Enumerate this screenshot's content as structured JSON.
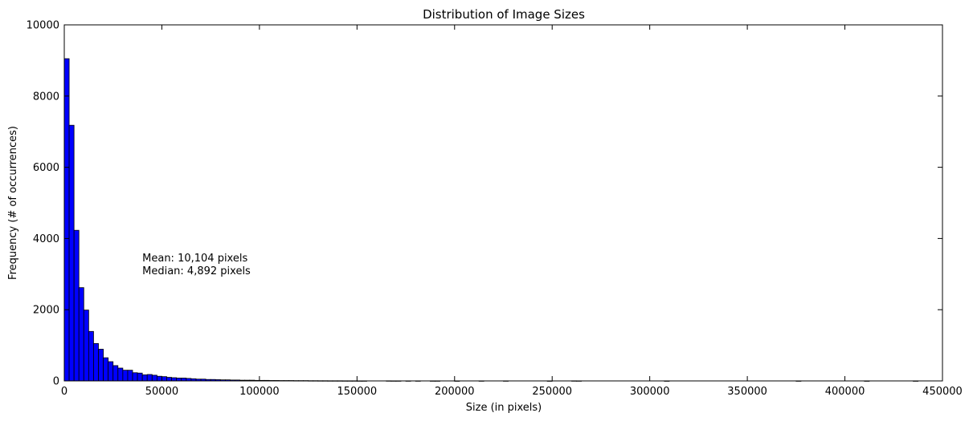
{
  "chart_data": {
    "type": "bar",
    "title": "Distribution of Image Sizes",
    "xlabel": "Size (in pixels)",
    "ylabel": "Frequency (# of occurrences)",
    "xlim": [
      0,
      450000
    ],
    "ylim": [
      0,
      10000
    ],
    "xticks": [
      "0",
      "50000",
      "100000",
      "150000",
      "200000",
      "250000",
      "300000",
      "350000",
      "400000",
      "450000"
    ],
    "yticks": [
      "0",
      "2000",
      "4000",
      "6000",
      "8000",
      "10000"
    ],
    "grid": false,
    "bar_color": "#0000ff",
    "bin_width": 2500,
    "bins": [
      {
        "x": 0,
        "y": 9050
      },
      {
        "x": 2500,
        "y": 7180
      },
      {
        "x": 5000,
        "y": 4230
      },
      {
        "x": 7500,
        "y": 2620
      },
      {
        "x": 10000,
        "y": 1990
      },
      {
        "x": 12500,
        "y": 1390
      },
      {
        "x": 15000,
        "y": 1050
      },
      {
        "x": 17500,
        "y": 890
      },
      {
        "x": 20000,
        "y": 650
      },
      {
        "x": 22500,
        "y": 540
      },
      {
        "x": 25000,
        "y": 430
      },
      {
        "x": 27500,
        "y": 360
      },
      {
        "x": 30000,
        "y": 300
      },
      {
        "x": 32500,
        "y": 300
      },
      {
        "x": 35000,
        "y": 230
      },
      {
        "x": 37500,
        "y": 220
      },
      {
        "x": 40000,
        "y": 170
      },
      {
        "x": 42500,
        "y": 180
      },
      {
        "x": 45000,
        "y": 160
      },
      {
        "x": 47500,
        "y": 130
      },
      {
        "x": 50000,
        "y": 120
      },
      {
        "x": 52500,
        "y": 100
      },
      {
        "x": 55000,
        "y": 90
      },
      {
        "x": 57500,
        "y": 80
      },
      {
        "x": 60000,
        "y": 80
      },
      {
        "x": 62500,
        "y": 70
      },
      {
        "x": 65000,
        "y": 60
      },
      {
        "x": 67500,
        "y": 50
      },
      {
        "x": 70000,
        "y": 50
      },
      {
        "x": 72500,
        "y": 40
      },
      {
        "x": 75000,
        "y": 40
      },
      {
        "x": 77500,
        "y": 35
      },
      {
        "x": 80000,
        "y": 30
      },
      {
        "x": 82500,
        "y": 30
      },
      {
        "x": 85000,
        "y": 25
      },
      {
        "x": 87500,
        "y": 25
      },
      {
        "x": 90000,
        "y": 20
      },
      {
        "x": 92500,
        "y": 20
      },
      {
        "x": 95000,
        "y": 20
      },
      {
        "x": 97500,
        "y": 15
      },
      {
        "x": 100000,
        "y": 15
      },
      {
        "x": 102500,
        "y": 15
      },
      {
        "x": 105000,
        "y": 12
      },
      {
        "x": 107500,
        "y": 12
      },
      {
        "x": 110000,
        "y": 10
      },
      {
        "x": 112500,
        "y": 10
      },
      {
        "x": 115000,
        "y": 10
      },
      {
        "x": 117500,
        "y": 8
      },
      {
        "x": 120000,
        "y": 8
      },
      {
        "x": 122500,
        "y": 8
      },
      {
        "x": 125000,
        "y": 6
      },
      {
        "x": 127500,
        "y": 6
      },
      {
        "x": 130000,
        "y": 5
      },
      {
        "x": 132500,
        "y": 5
      },
      {
        "x": 135000,
        "y": 4
      },
      {
        "x": 137500,
        "y": 4
      },
      {
        "x": 140000,
        "y": 4
      },
      {
        "x": 142500,
        "y": 3
      },
      {
        "x": 145000,
        "y": 3
      },
      {
        "x": 147500,
        "y": 3
      },
      {
        "x": 150000,
        "y": 2
      },
      {
        "x": 152500,
        "y": 2
      },
      {
        "x": 165000,
        "y": 3
      },
      {
        "x": 167500,
        "y": 2
      },
      {
        "x": 170000,
        "y": 2
      },
      {
        "x": 175000,
        "y": 2
      },
      {
        "x": 180000,
        "y": 2
      },
      {
        "x": 187500,
        "y": 2
      },
      {
        "x": 190000,
        "y": 2
      },
      {
        "x": 200000,
        "y": 1
      },
      {
        "x": 212500,
        "y": 2
      },
      {
        "x": 225000,
        "y": 2
      },
      {
        "x": 247500,
        "y": 1
      },
      {
        "x": 260000,
        "y": 3
      },
      {
        "x": 262500,
        "y": 2
      },
      {
        "x": 307500,
        "y": 1
      },
      {
        "x": 375000,
        "y": 1
      },
      {
        "x": 410000,
        "y": 1
      },
      {
        "x": 435000,
        "y": 1
      }
    ],
    "annotation": {
      "lines": [
        "Mean: 10,104 pixels",
        "Median: 4,892 pixels"
      ],
      "x": 40000,
      "y": 3000
    }
  }
}
